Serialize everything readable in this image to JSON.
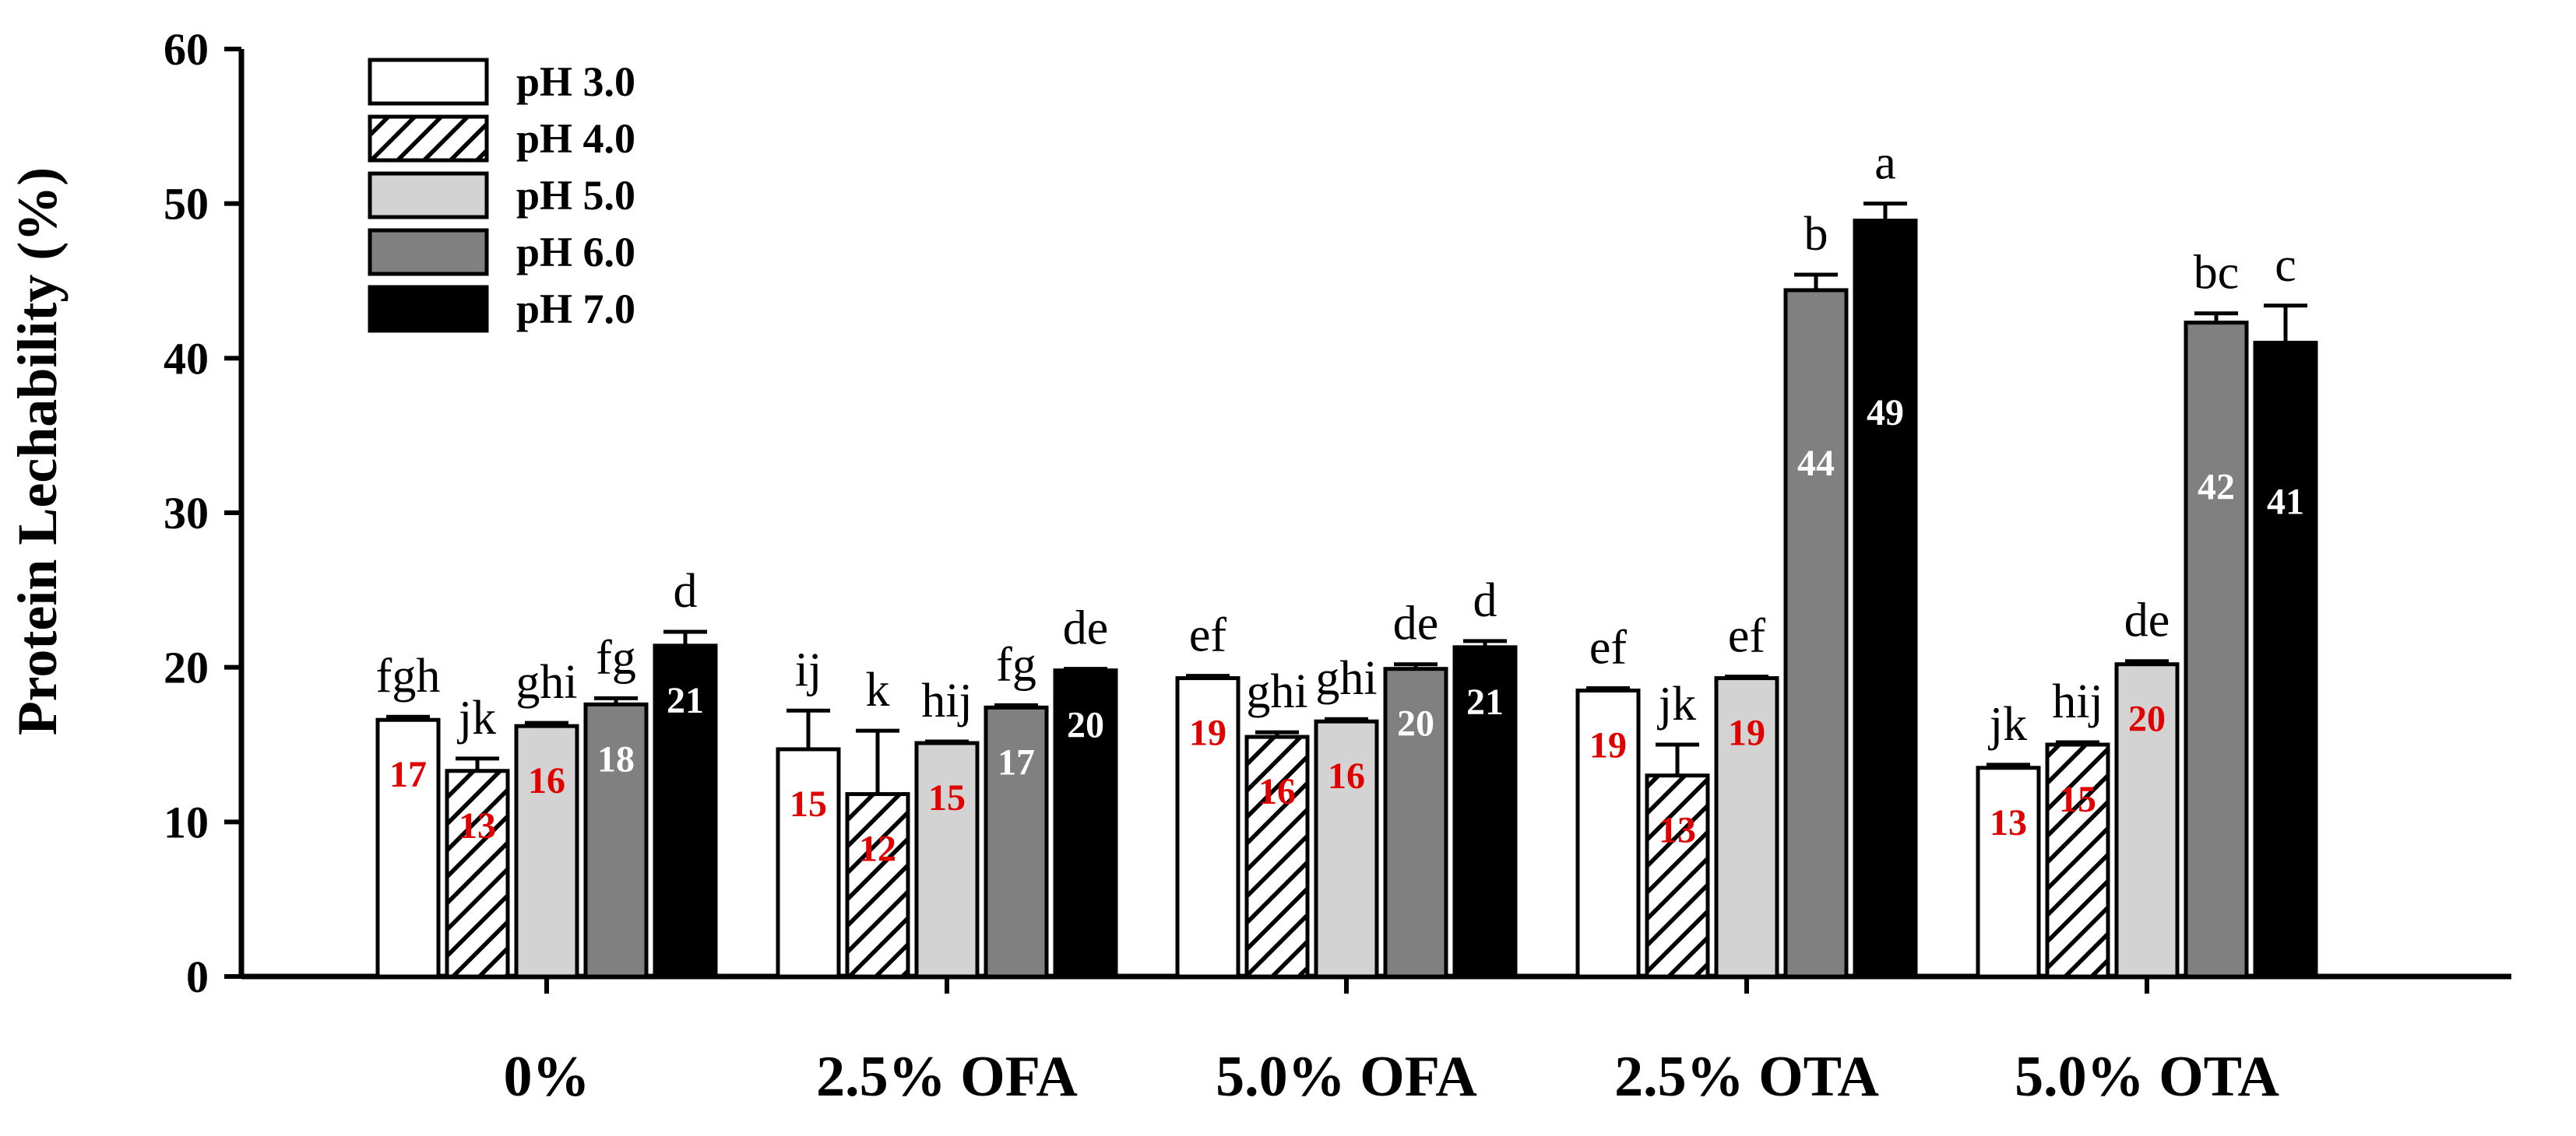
{
  "chart_data": {
    "type": "bar",
    "title": "",
    "xlabel": "",
    "ylabel": "Protein Lechability (%)",
    "ylim": [
      0,
      60
    ],
    "yticks": [
      "0",
      "10",
      "20",
      "30",
      "40",
      "50",
      "60"
    ],
    "categories": [
      "0%",
      "2.5% OFA",
      "5.0% OFA",
      "2.5% OTA",
      "5.0% OTA"
    ],
    "legend_position": "top-left",
    "series": [
      {
        "name": "pH 3.0",
        "fill": "#ffffff",
        "pattern": "solid",
        "label_color": "#e00000",
        "values": [
          16.6,
          14.7,
          19.3,
          18.5,
          13.5
        ],
        "errors": [
          0.2,
          2.5,
          0.15,
          0.15,
          0.2
        ],
        "value_labels": [
          "17",
          "15",
          "19",
          "19",
          "13"
        ],
        "letters": [
          "fgh",
          "ij",
          "ef",
          "ef",
          "jk"
        ]
      },
      {
        "name": "pH 4.0",
        "fill": "#ffffff",
        "pattern": "hatch",
        "label_color": "#e00000",
        "values": [
          13.3,
          11.8,
          15.5,
          13.0,
          15.0
        ],
        "errors": [
          0.8,
          4.1,
          0.3,
          2.0,
          0.15
        ],
        "value_labels": [
          "13",
          "12",
          "16",
          "13",
          "15"
        ],
        "letters": [
          "jk",
          "k",
          "ghi",
          "jk",
          "hij"
        ]
      },
      {
        "name": "pH 5.0",
        "fill": "#d3d3d3",
        "pattern": "solid",
        "label_color": "#e00000",
        "values": [
          16.2,
          15.1,
          16.5,
          19.3,
          20.2
        ],
        "errors": [
          0.2,
          0.1,
          0.15,
          0.1,
          0.2
        ],
        "value_labels": [
          "16",
          "15",
          "16",
          "19",
          "20"
        ],
        "letters": [
          "ghi",
          "hij",
          "ghi",
          "ef",
          "de"
        ]
      },
      {
        "name": "pH 6.0",
        "fill": "#808080",
        "pattern": "solid",
        "label_color": "#ffffff",
        "values": [
          17.6,
          17.4,
          19.9,
          44.4,
          42.3
        ],
        "errors": [
          0.4,
          0.15,
          0.3,
          1.0,
          0.6
        ],
        "value_labels": [
          "18",
          "17",
          "20",
          "44",
          "42"
        ],
        "letters": [
          "fg",
          "fg",
          "de",
          "b",
          "bc"
        ]
      },
      {
        "name": "pH 7.0",
        "fill": "#000000",
        "pattern": "solid",
        "label_color": "#ffffff",
        "values": [
          21.4,
          19.8,
          21.3,
          48.9,
          41.0
        ],
        "errors": [
          0.9,
          0.1,
          0.4,
          1.1,
          2.4
        ],
        "value_labels": [
          "21",
          "20",
          "21",
          "49",
          "41"
        ],
        "letters": [
          "d",
          "de",
          "d",
          "a",
          "c"
        ]
      }
    ]
  }
}
